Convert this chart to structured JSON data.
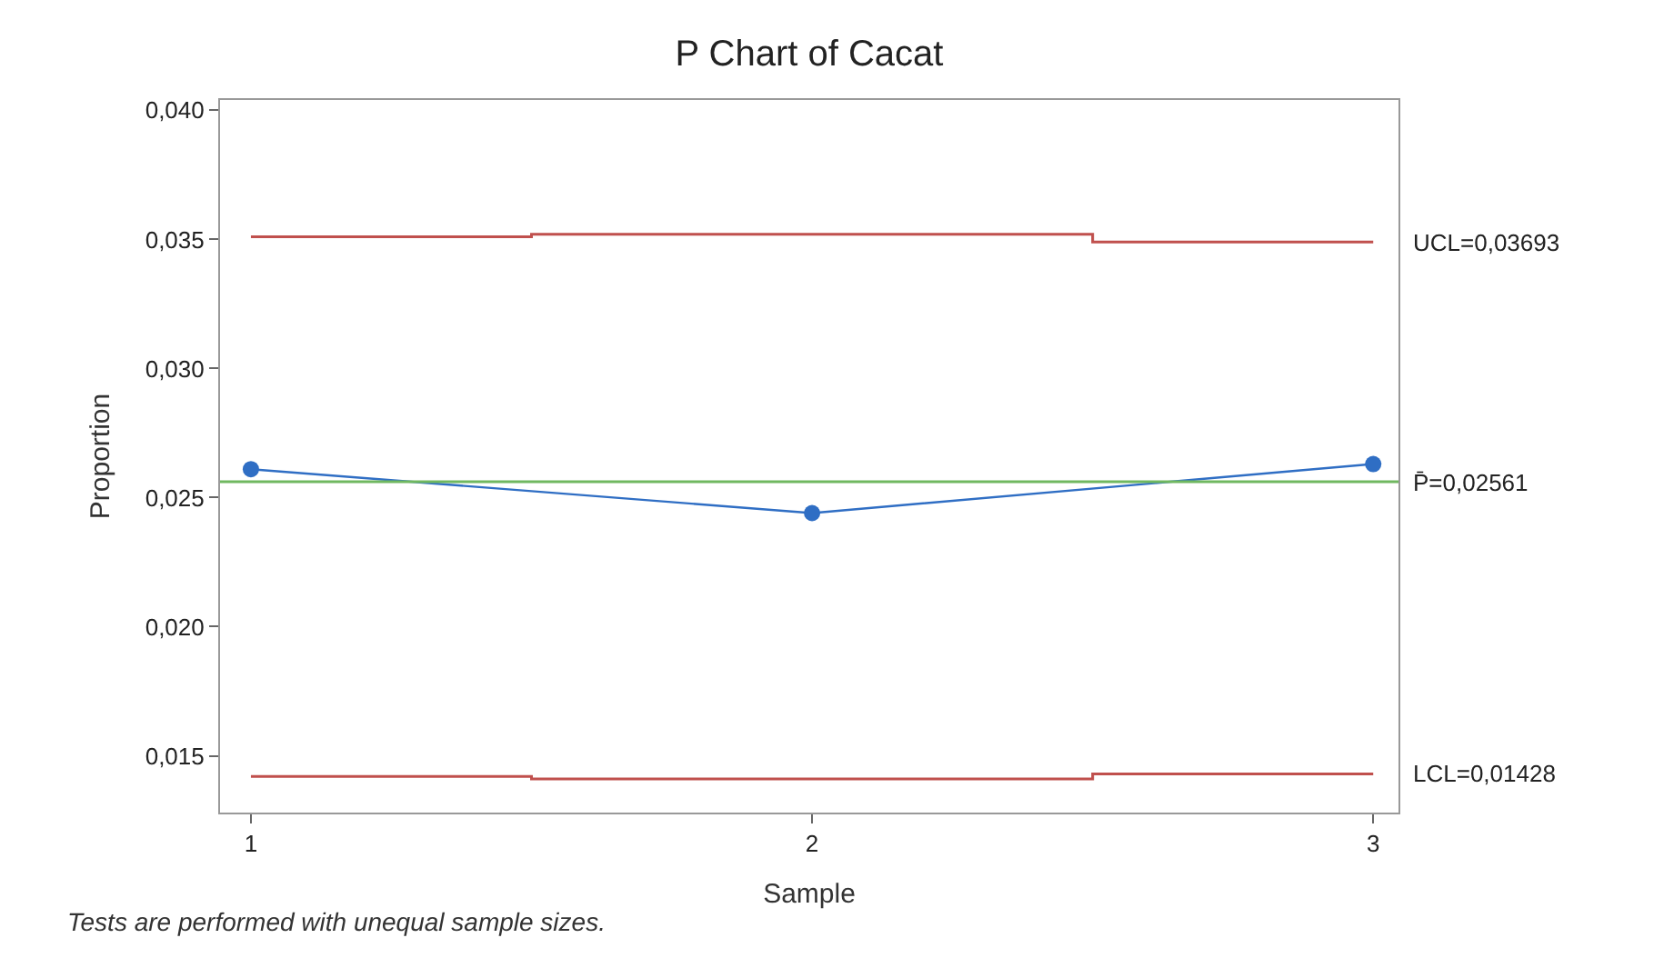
{
  "chart_data": {
    "type": "line",
    "title": "P Chart of Cacat",
    "xlabel": "Sample",
    "ylabel": "Proportion",
    "x": [
      1,
      2,
      3
    ],
    "series": [
      {
        "name": "UCL=0,03693",
        "type": "step",
        "marker": "none",
        "color": "#c0504d",
        "values": [
          0.0351,
          0.0352,
          0.0349
        ]
      },
      {
        "name": "LCL=0,01428",
        "type": "step",
        "marker": "none",
        "color": "#c0504d",
        "values": [
          0.0142,
          0.0141,
          0.0143
        ]
      },
      {
        "color": "#2f6ec4",
        "values": [
          0.0261,
          0.0244,
          0.0263
        ]
      }
    ],
    "ref_lines": [
      {
        "axis": "y",
        "value": 0.02561,
        "label": "P̄=0,02561",
        "color": "#70b860"
      }
    ],
    "annotations": [
      "Tests are performed with unequal sample sizes."
    ],
    "marker": "circle",
    "line_style": "solid",
    "grid": false,
    "legend": false,
    "xlim": [
      0.945,
      3.045
    ],
    "xticks": [
      1,
      2,
      3
    ],
    "ylim": [
      0.0128,
      0.0404
    ],
    "yticks": [
      {
        "value": 0.015,
        "label": "0,015"
      },
      {
        "value": 0.02,
        "label": "0,020"
      },
      {
        "value": 0.025,
        "label": "0,025"
      },
      {
        "value": 0.03,
        "label": "0,030"
      },
      {
        "value": 0.035,
        "label": "0,035"
      },
      {
        "value": 0.04,
        "label": "0,040"
      }
    ]
  }
}
